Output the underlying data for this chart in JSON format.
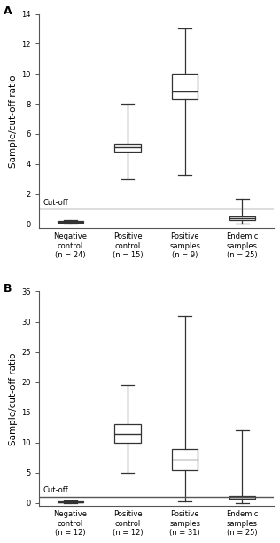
{
  "panel_A": {
    "title": "A",
    "ylabel": "Sample/cut-off ratio",
    "ylim": [
      -0.3,
      14
    ],
    "yticks": [
      0,
      2,
      4,
      6,
      8,
      10,
      12,
      14
    ],
    "cutoff": 1.0,
    "cutoff_label": "Cut-off",
    "boxes": [
      {
        "label": "Negative\ncontrol\n(n = 24)",
        "whislo": 0.0,
        "q1": 0.09,
        "med": 0.15,
        "q3": 0.22,
        "whishi": 0.28
      },
      {
        "label": "Positive\ncontrol\n(n = 15)",
        "whislo": 3.0,
        "q1": 4.8,
        "med": 5.1,
        "q3": 5.35,
        "whishi": 8.0
      },
      {
        "label": "Positive\nsamples\n(n = 9)",
        "whislo": 3.3,
        "q1": 8.3,
        "med": 8.85,
        "q3": 10.0,
        "whishi": 13.0
      },
      {
        "label": "Endemic\nsamples\n(n = 25)",
        "whislo": 0.0,
        "q1": 0.28,
        "med": 0.38,
        "q3": 0.5,
        "whishi": 1.65
      }
    ]
  },
  "panel_B": {
    "title": "B",
    "ylabel": "Sample/cut-off ratio",
    "ylim": [
      -0.5,
      35
    ],
    "yticks": [
      0,
      5,
      10,
      15,
      20,
      25,
      30,
      35
    ],
    "cutoff": 1.0,
    "cutoff_label": "Cut-off",
    "boxes": [
      {
        "label": "Negative\ncontrol\n(n = 12)",
        "whislo": 0.0,
        "q1": 0.08,
        "med": 0.15,
        "q3": 0.25,
        "whishi": 0.4
      },
      {
        "label": "Positive\ncontrol\n(n = 12)",
        "whislo": 5.0,
        "q1": 10.0,
        "med": 11.5,
        "q3": 13.0,
        "whishi": 19.5
      },
      {
        "label": "Positive\nsamples\n(n = 31)",
        "whislo": 0.3,
        "q1": 5.5,
        "med": 7.2,
        "q3": 9.0,
        "whishi": 31.0
      },
      {
        "label": "Endemic\nsamples\n(n = 25)",
        "whislo": 0.0,
        "q1": 0.7,
        "med": 1.0,
        "q3": 1.2,
        "whishi": 12.0
      }
    ]
  },
  "box_color": "#ffffff",
  "box_edgecolor": "#333333",
  "median_color": "#333333",
  "whisker_color": "#333333",
  "cap_color": "#333333",
  "cutoff_line_color": "#555555",
  "background_color": "#ffffff",
  "label_fontsize": 6.0,
  "ylabel_fontsize": 7.5,
  "title_fontsize": 9,
  "box_width": 0.45
}
